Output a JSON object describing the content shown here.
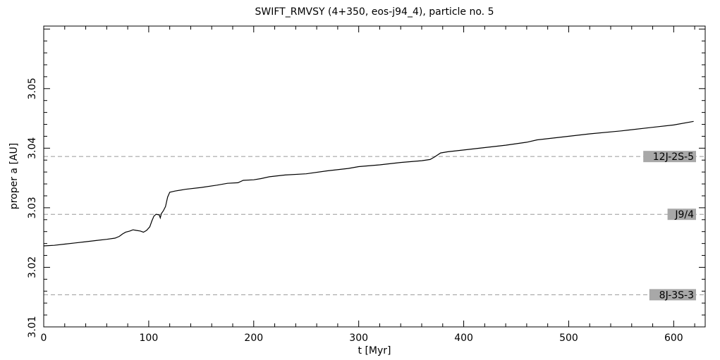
{
  "chart_data": {
    "type": "line",
    "title": "SWIFT_RMVSY (4+350, eos-j94_4), particle no. 5",
    "xlabel": "t [Myr]",
    "ylabel": "proper a [AU]",
    "xlim": [
      0,
      630
    ],
    "ylim": [
      3.01,
      3.0605
    ],
    "x_ticks": [
      0,
      100,
      200,
      300,
      400,
      500,
      600
    ],
    "x_tick_labels": [
      "0",
      "100",
      "200",
      "300",
      "400",
      "500",
      "600"
    ],
    "y_ticks": [
      3.01,
      3.02,
      3.03,
      3.04,
      3.05
    ],
    "y_tick_labels": [
      "3.01",
      "3.02",
      "3.03",
      "3.04",
      "3.05"
    ],
    "grid": false,
    "resonances": [
      {
        "label": "12J-2S-5",
        "a": 3.0386
      },
      {
        "label": "J9/4",
        "a": 3.0289
      },
      {
        "label": "8J-3S-3",
        "a": 3.0154
      }
    ],
    "series": [
      {
        "x": [
          0,
          10,
          20,
          30,
          40,
          50,
          60,
          68,
          72,
          75,
          78,
          82,
          85,
          88,
          92,
          95,
          98,
          101,
          103,
          105,
          107,
          110,
          111,
          112,
          114,
          116,
          118,
          120,
          125,
          135,
          150,
          165,
          175,
          185,
          190,
          200,
          207,
          215,
          230,
          250,
          270,
          290,
          300,
          320,
          340,
          360,
          368,
          372,
          378,
          385,
          400,
          420,
          440,
          460,
          470,
          490,
          520,
          550,
          580,
          600,
          619
        ],
        "y": [
          3.0236,
          3.0237,
          3.0239,
          3.0241,
          3.0243,
          3.0245,
          3.0247,
          3.0249,
          3.0252,
          3.0256,
          3.0259,
          3.0261,
          3.0263,
          3.0262,
          3.0261,
          3.0259,
          3.0262,
          3.0268,
          3.0278,
          3.0286,
          3.0289,
          3.0288,
          3.0283,
          3.029,
          3.0295,
          3.0302,
          3.0318,
          3.0326,
          3.0328,
          3.0331,
          3.0334,
          3.0338,
          3.0341,
          3.0342,
          3.0346,
          3.0347,
          3.0349,
          3.0352,
          3.0355,
          3.0357,
          3.0362,
          3.0366,
          3.0369,
          3.0372,
          3.0376,
          3.0379,
          3.0381,
          3.0385,
          3.0392,
          3.0394,
          3.0397,
          3.0401,
          3.0405,
          3.041,
          3.0414,
          3.0418,
          3.0424,
          3.0429,
          3.0435,
          3.0439,
          3.0445
        ]
      }
    ]
  }
}
